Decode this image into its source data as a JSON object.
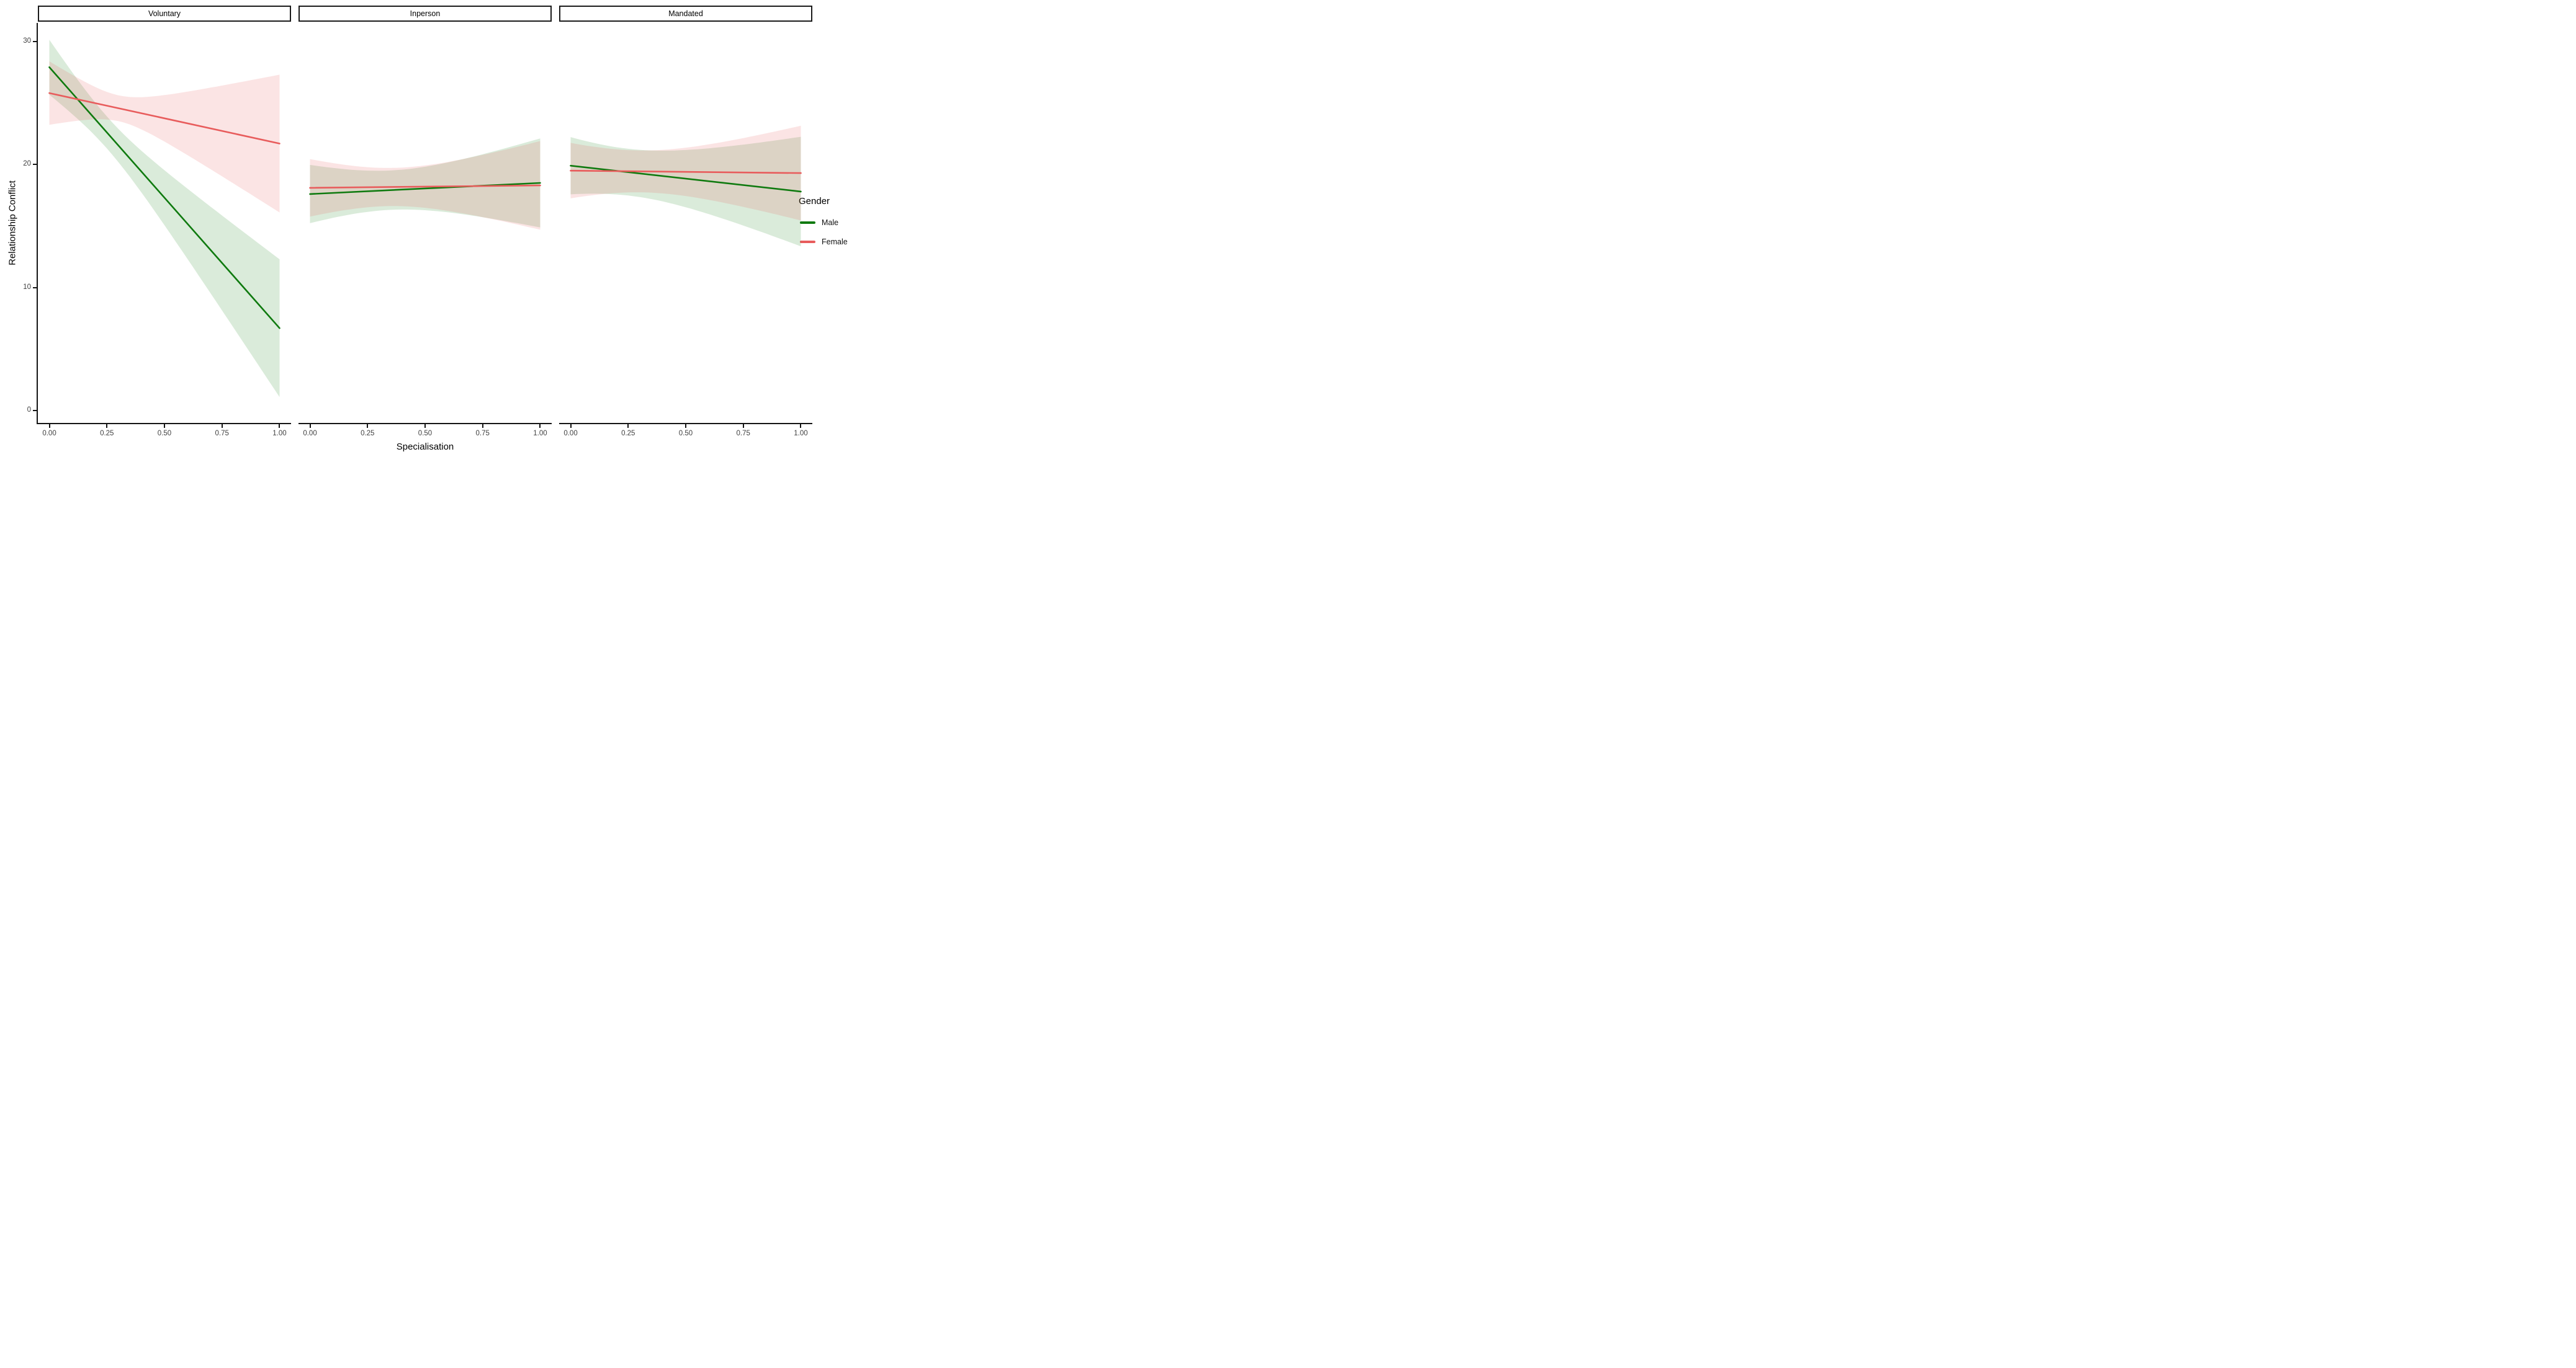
{
  "chart_data": {
    "type": "line",
    "title": "",
    "xlabel": "Specialisation",
    "ylabel": "Relationship Conflict",
    "grid": false,
    "xlim": [
      -0.05,
      1.05
    ],
    "ylim": [
      -1,
      31.5
    ],
    "x_tick_values": [
      0,
      0.25,
      0.5,
      0.75,
      1
    ],
    "x_tick_labels": [
      "0.00",
      "0.25",
      "0.50",
      "0.75",
      "1.00"
    ],
    "y_tick_values": [
      0,
      10,
      20,
      30
    ],
    "y_tick_labels": [
      "0",
      "10",
      "20",
      "30"
    ],
    "legend": {
      "title": "Gender",
      "position": "right",
      "entries": [
        {
          "label": "Male",
          "color": "#0f7a0f"
        },
        {
          "label": "Female",
          "color": "#e85c5c"
        }
      ]
    },
    "colors": {
      "male_line": "#0f7a0f",
      "female_line": "#e85c5c",
      "male_ribbon": "rgba(10,122,10,0.15)",
      "female_ribbon": "rgba(228,90,90,0.16)",
      "axis": "#141414",
      "tick_text": "#404040"
    },
    "facets": [
      {
        "label": "Voluntary",
        "series": [
          {
            "name": "Male",
            "x": [
              0,
              1
            ],
            "y": [
              27.9,
              6.7
            ],
            "ci_at_x0": [
              25.1,
              29.8
            ],
            "ci_at_x1": [
              1.2,
              12.4
            ],
            "ci_halfwidth": {
              "a": 1.69,
              "b": 52.7,
              "c": 0.25
            }
          },
          {
            "name": "Female",
            "x": [
              0,
              1
            ],
            "y": [
              25.8,
              21.7
            ],
            "ci_at_x0": [
              23.4,
              28.2
            ],
            "ci_at_x1": [
              16.1,
              27.3
            ],
            "ci_halfwidth": {
              "a": 1.1,
              "b": 61.7,
              "c": 0.3
            }
          }
        ]
      },
      {
        "label": "Inperson",
        "series": [
          {
            "name": "Male",
            "x": [
              0,
              1
            ],
            "y": [
              17.6,
              18.5
            ],
            "ci_at_x0": [
              15.3,
              19.9
            ],
            "ci_at_x1": [
              14.9,
              22.1
            ],
            "ci_halfwidth": {
              "a": 2.56,
              "b": 24.9,
              "c": 0.35
            }
          },
          {
            "name": "Female",
            "x": [
              0,
              1
            ],
            "y": [
              18.1,
              18.3
            ],
            "ci_at_x0": [
              15.8,
              20.4
            ],
            "ci_at_x1": [
              14.7,
              21.9
            ],
            "ci_halfwidth": {
              "a": 2.4,
              "b": 25.0,
              "c": 0.35
            }
          }
        ]
      },
      {
        "label": "Mandated",
        "series": [
          {
            "name": "Male",
            "x": [
              0,
              1
            ],
            "y": [
              19.9,
              17.8
            ],
            "ci_at_x0": [
              17.6,
              22.2
            ],
            "ci_at_x1": [
              13.4,
              22.2
            ],
            "ci_halfwidth": {
              "a": 3.61,
              "b": 28.8,
              "c": 0.25
            }
          },
          {
            "name": "Female",
            "x": [
              0,
              1
            ],
            "y": [
              19.5,
              19.3
            ],
            "ci_at_x0": [
              17.3,
              21.8
            ],
            "ci_at_x1": [
              15.8,
              23.5
            ],
            "ci_halfwidth": {
              "a": 2.89,
              "b": 24.3,
              "c": 0.3
            }
          }
        ]
      }
    ]
  }
}
